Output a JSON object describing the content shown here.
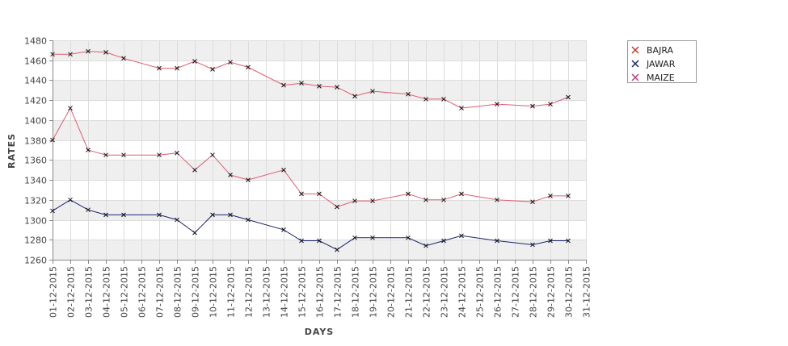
{
  "chart_data": {
    "type": "line",
    "title": "",
    "xlabel": "DAYS",
    "ylabel": "RATES",
    "ylim": [
      1260,
      1480
    ],
    "yticks": [
      1260,
      1280,
      1300,
      1320,
      1340,
      1360,
      1380,
      1400,
      1420,
      1440,
      1460,
      1480
    ],
    "categories": [
      "01-12-2015",
      "02-12-2015",
      "03-12-2015",
      "04-12-2015",
      "05-12-2015",
      "06-12-2015",
      "07-12-2015",
      "08-12-2015",
      "09-12-2015",
      "10-12-2015",
      "11-12-2015",
      "12-12-2015",
      "13-12-2015",
      "14-12-2015",
      "15-12-2015",
      "16-12-2015",
      "17-12-2015",
      "18-12-2015",
      "19-12-2015",
      "20-12-2015",
      "21-12-2015",
      "22-12-2015",
      "23-12-2015",
      "24-12-2015",
      "25-12-2015",
      "26-12-2015",
      "27-12-2015",
      "28-12-2015",
      "29-12-2015",
      "30-12-2015",
      "31-12-2015"
    ],
    "grid": true,
    "legend_position": "top-right",
    "series": [
      {
        "name": "BAJRA",
        "color": "#e05c6e",
        "points": [
          [
            "01-12-2015",
            1380
          ],
          [
            "02-12-2015",
            1412
          ],
          [
            "03-12-2015",
            1370
          ],
          [
            "04-12-2015",
            1365
          ],
          [
            "05-12-2015",
            1365
          ],
          [
            "07-12-2015",
            1365
          ],
          [
            "08-12-2015",
            1367
          ],
          [
            "09-12-2015",
            1350
          ],
          [
            "10-12-2015",
            1365
          ],
          [
            "11-12-2015",
            1345
          ],
          [
            "12-12-2015",
            1340
          ],
          [
            "14-12-2015",
            1350
          ],
          [
            "15-12-2015",
            1326
          ],
          [
            "16-12-2015",
            1326
          ],
          [
            "17-12-2015",
            1313
          ],
          [
            "18-12-2015",
            1319
          ],
          [
            "19-12-2015",
            1319
          ],
          [
            "21-12-2015",
            1326
          ],
          [
            "22-12-2015",
            1320
          ],
          [
            "23-12-2015",
            1320
          ],
          [
            "24-12-2015",
            1326
          ],
          [
            "26-12-2015",
            1320
          ],
          [
            "28-12-2015",
            1318
          ],
          [
            "29-12-2015",
            1324
          ],
          [
            "30-12-2015",
            1324
          ]
        ]
      },
      {
        "name": "JAWAR",
        "color": "#1a2470",
        "points": [
          [
            "01-12-2015",
            1309
          ],
          [
            "02-12-2015",
            1320
          ],
          [
            "03-12-2015",
            1310
          ],
          [
            "04-12-2015",
            1305
          ],
          [
            "05-12-2015",
            1305
          ],
          [
            "07-12-2015",
            1305
          ],
          [
            "08-12-2015",
            1300
          ],
          [
            "09-12-2015",
            1287
          ],
          [
            "10-12-2015",
            1305
          ],
          [
            "11-12-2015",
            1305
          ],
          [
            "12-12-2015",
            1300
          ],
          [
            "14-12-2015",
            1290
          ],
          [
            "15-12-2015",
            1279
          ],
          [
            "16-12-2015",
            1279
          ],
          [
            "17-12-2015",
            1270
          ],
          [
            "18-12-2015",
            1282
          ],
          [
            "19-12-2015",
            1282
          ],
          [
            "21-12-2015",
            1282
          ],
          [
            "22-12-2015",
            1274
          ],
          [
            "23-12-2015",
            1279
          ],
          [
            "24-12-2015",
            1284
          ],
          [
            "26-12-2015",
            1279
          ],
          [
            "28-12-2015",
            1275
          ],
          [
            "29-12-2015",
            1279
          ],
          [
            "30-12-2015",
            1279
          ]
        ]
      },
      {
        "name": "MAIZE",
        "color": "#e05c6e",
        "points": [
          [
            "01-12-2015",
            1466
          ],
          [
            "02-12-2015",
            1466
          ],
          [
            "03-12-2015",
            1469
          ],
          [
            "04-12-2015",
            1468
          ],
          [
            "05-12-2015",
            1462
          ],
          [
            "07-12-2015",
            1452
          ],
          [
            "08-12-2015",
            1452
          ],
          [
            "09-12-2015",
            1459
          ],
          [
            "10-12-2015",
            1451
          ],
          [
            "11-12-2015",
            1458
          ],
          [
            "12-12-2015",
            1453
          ],
          [
            "14-12-2015",
            1435
          ],
          [
            "15-12-2015",
            1437
          ],
          [
            "16-12-2015",
            1434
          ],
          [
            "17-12-2015",
            1433
          ],
          [
            "18-12-2015",
            1424
          ],
          [
            "19-12-2015",
            1429
          ],
          [
            "21-12-2015",
            1426
          ],
          [
            "22-12-2015",
            1421
          ],
          [
            "23-12-2015",
            1421
          ],
          [
            "24-12-2015",
            1412
          ],
          [
            "26-12-2015",
            1416
          ],
          [
            "28-12-2015",
            1414
          ],
          [
            "29-12-2015",
            1416
          ],
          [
            "30-12-2015",
            1423
          ]
        ]
      }
    ],
    "legend": [
      {
        "name": "BAJRA",
        "color": "#c0392b"
      },
      {
        "name": "JAWAR",
        "color": "#1a2470"
      },
      {
        "name": "MAIZE",
        "color": "#c0397b"
      }
    ]
  }
}
